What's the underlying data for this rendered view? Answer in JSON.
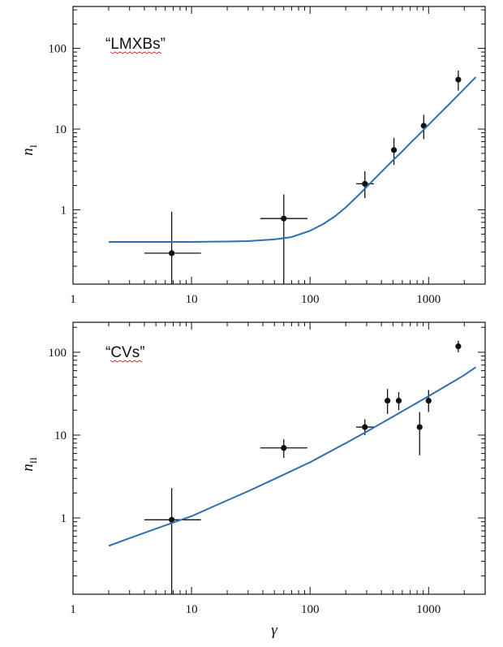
{
  "colors": {
    "curve": "#2f6fb0",
    "points": "#111111",
    "axes": "#111111"
  },
  "chart_data": [
    {
      "type": "scatter",
      "title": "",
      "annotation": "“LMXBs”",
      "xscale": "log",
      "yscale": "log",
      "xlim": [
        1,
        3000
      ],
      "ylim": [
        0.12,
        330
      ],
      "xticks": [
        1,
        10,
        100,
        1000
      ],
      "xtick_labels": [
        "1",
        "10",
        "100",
        "1000"
      ],
      "yticks": [
        1,
        10,
        100
      ],
      "ytick_labels": [
        "1",
        "10",
        "100"
      ],
      "xlabel": "",
      "ylabel_main": "n",
      "ylabel_sub": "I",
      "series": [
        {
          "name": "data",
          "kind": "errorbar",
          "points": [
            {
              "x": 6.8,
              "y": 0.29,
              "xerr": [
                4,
                12
              ],
              "yerr": [
                0.12,
                0.95
              ]
            },
            {
              "x": 60,
              "y": 0.78,
              "xerr": [
                38,
                95
              ],
              "yerr": [
                0.12,
                1.55
              ]
            },
            {
              "x": 290,
              "y": 2.1,
              "xerr": [
                245,
                345
              ],
              "yerr": [
                1.4,
                3.0
              ]
            },
            {
              "x": 510,
              "y": 5.5,
              "yerr": [
                3.6,
                7.8
              ]
            },
            {
              "x": 910,
              "y": 11,
              "yerr": [
                7.5,
                15
              ]
            },
            {
              "x": 1780,
              "y": 41,
              "yerr": [
                30,
                53
              ]
            }
          ]
        },
        {
          "name": "model",
          "kind": "line",
          "x": [
            2,
            5,
            10,
            20,
            30,
            50,
            70,
            100,
            130,
            160,
            200,
            260,
            300,
            400,
            500,
            600,
            700,
            800,
            1000,
            1200,
            1500,
            2000,
            2500
          ],
          "y": [
            0.4,
            0.4,
            0.4,
            0.405,
            0.41,
            0.43,
            0.46,
            0.55,
            0.67,
            0.82,
            1.07,
            1.55,
            1.92,
            2.95,
            4.1,
            5.3,
            6.7,
            8.1,
            11.3,
            14.8,
            20.5,
            31.5,
            44
          ]
        }
      ]
    },
    {
      "type": "scatter",
      "title": "",
      "annotation": "“CVs”",
      "xscale": "log",
      "yscale": "log",
      "xlim": [
        1,
        3000
      ],
      "ylim": [
        0.12,
        230
      ],
      "xticks": [
        1,
        10,
        100,
        1000
      ],
      "xtick_labels": [
        "1",
        "10",
        "100",
        "1000"
      ],
      "yticks": [
        1,
        10,
        100
      ],
      "ytick_labels": [
        "1",
        "10",
        "100"
      ],
      "xlabel": "γ",
      "ylabel_main": "n",
      "ylabel_sub": "II",
      "series": [
        {
          "name": "data",
          "kind": "errorbar",
          "points": [
            {
              "x": 6.8,
              "y": 0.95,
              "xerr": [
                4,
                12
              ],
              "yerr": [
                0.12,
                2.3
              ]
            },
            {
              "x": 60,
              "y": 7,
              "xerr": [
                38,
                95
              ],
              "yerr": [
                5.3,
                8.9
              ]
            },
            {
              "x": 290,
              "y": 12.5,
              "xerr": [
                245,
                345
              ],
              "yerr": [
                10,
                15.5
              ]
            },
            {
              "x": 450,
              "y": 26,
              "yerr": [
                18,
                36
              ]
            },
            {
              "x": 560,
              "y": 26,
              "yerr": [
                20,
                33
              ]
            },
            {
              "x": 840,
              "y": 12.5,
              "yerr": [
                5.7,
                19
              ]
            },
            {
              "x": 1000,
              "y": 26,
              "yerr": [
                19,
                35
              ]
            },
            {
              "x": 1780,
              "y": 118,
              "yerr": [
                100,
                138
              ]
            }
          ]
        },
        {
          "name": "model",
          "kind": "line",
          "x": [
            2,
            3,
            5,
            7,
            10,
            20,
            30,
            50,
            70,
            100,
            200,
            300,
            500,
            700,
            1000,
            1500,
            2000,
            2500
          ],
          "y": [
            0.46,
            0.57,
            0.74,
            0.88,
            1.05,
            1.63,
            2.1,
            2.95,
            3.7,
            4.7,
            8.0,
            11.0,
            16.7,
            22,
            29.5,
            41.5,
            53,
            66
          ]
        }
      ]
    }
  ]
}
